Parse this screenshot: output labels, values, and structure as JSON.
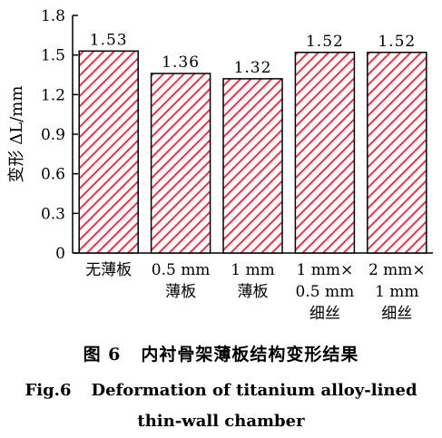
{
  "chart_data": {
    "type": "bar",
    "categories": [
      [
        "无薄板"
      ],
      [
        "0.5 mm",
        "薄板"
      ],
      [
        "1 mm",
        "薄板"
      ],
      [
        "1 mm×",
        "0.5 mm",
        "细丝"
      ],
      [
        "2 mm×",
        "1 mm",
        "细丝"
      ]
    ],
    "values": [
      1.53,
      1.36,
      1.32,
      1.52,
      1.52
    ],
    "value_labels": [
      "1.53",
      "1.36",
      "1.32",
      "1.52",
      "1.52"
    ],
    "ylabel": "变形 ΔL/mm",
    "ylim": [
      0,
      1.8
    ],
    "yticks": [
      0,
      0.3,
      0.6,
      0.9,
      1.2,
      1.5,
      1.8
    ],
    "ytick_labels": [
      "0",
      "0.3",
      "0.6",
      "0.9",
      "1.2",
      "1.5",
      "1.8"
    ],
    "grid": false,
    "bar_pattern": "diagonal-hatch",
    "colors": {
      "hatch": "#e8344a",
      "outline": "#000000"
    }
  },
  "caption": {
    "cn_number": "图 6",
    "cn_title": "内衬骨架薄板结构变形结果",
    "en_number": "Fig.6",
    "en_line1": "Deformation of titanium alloy-lined",
    "en_line2": "thin-wall chamber"
  }
}
